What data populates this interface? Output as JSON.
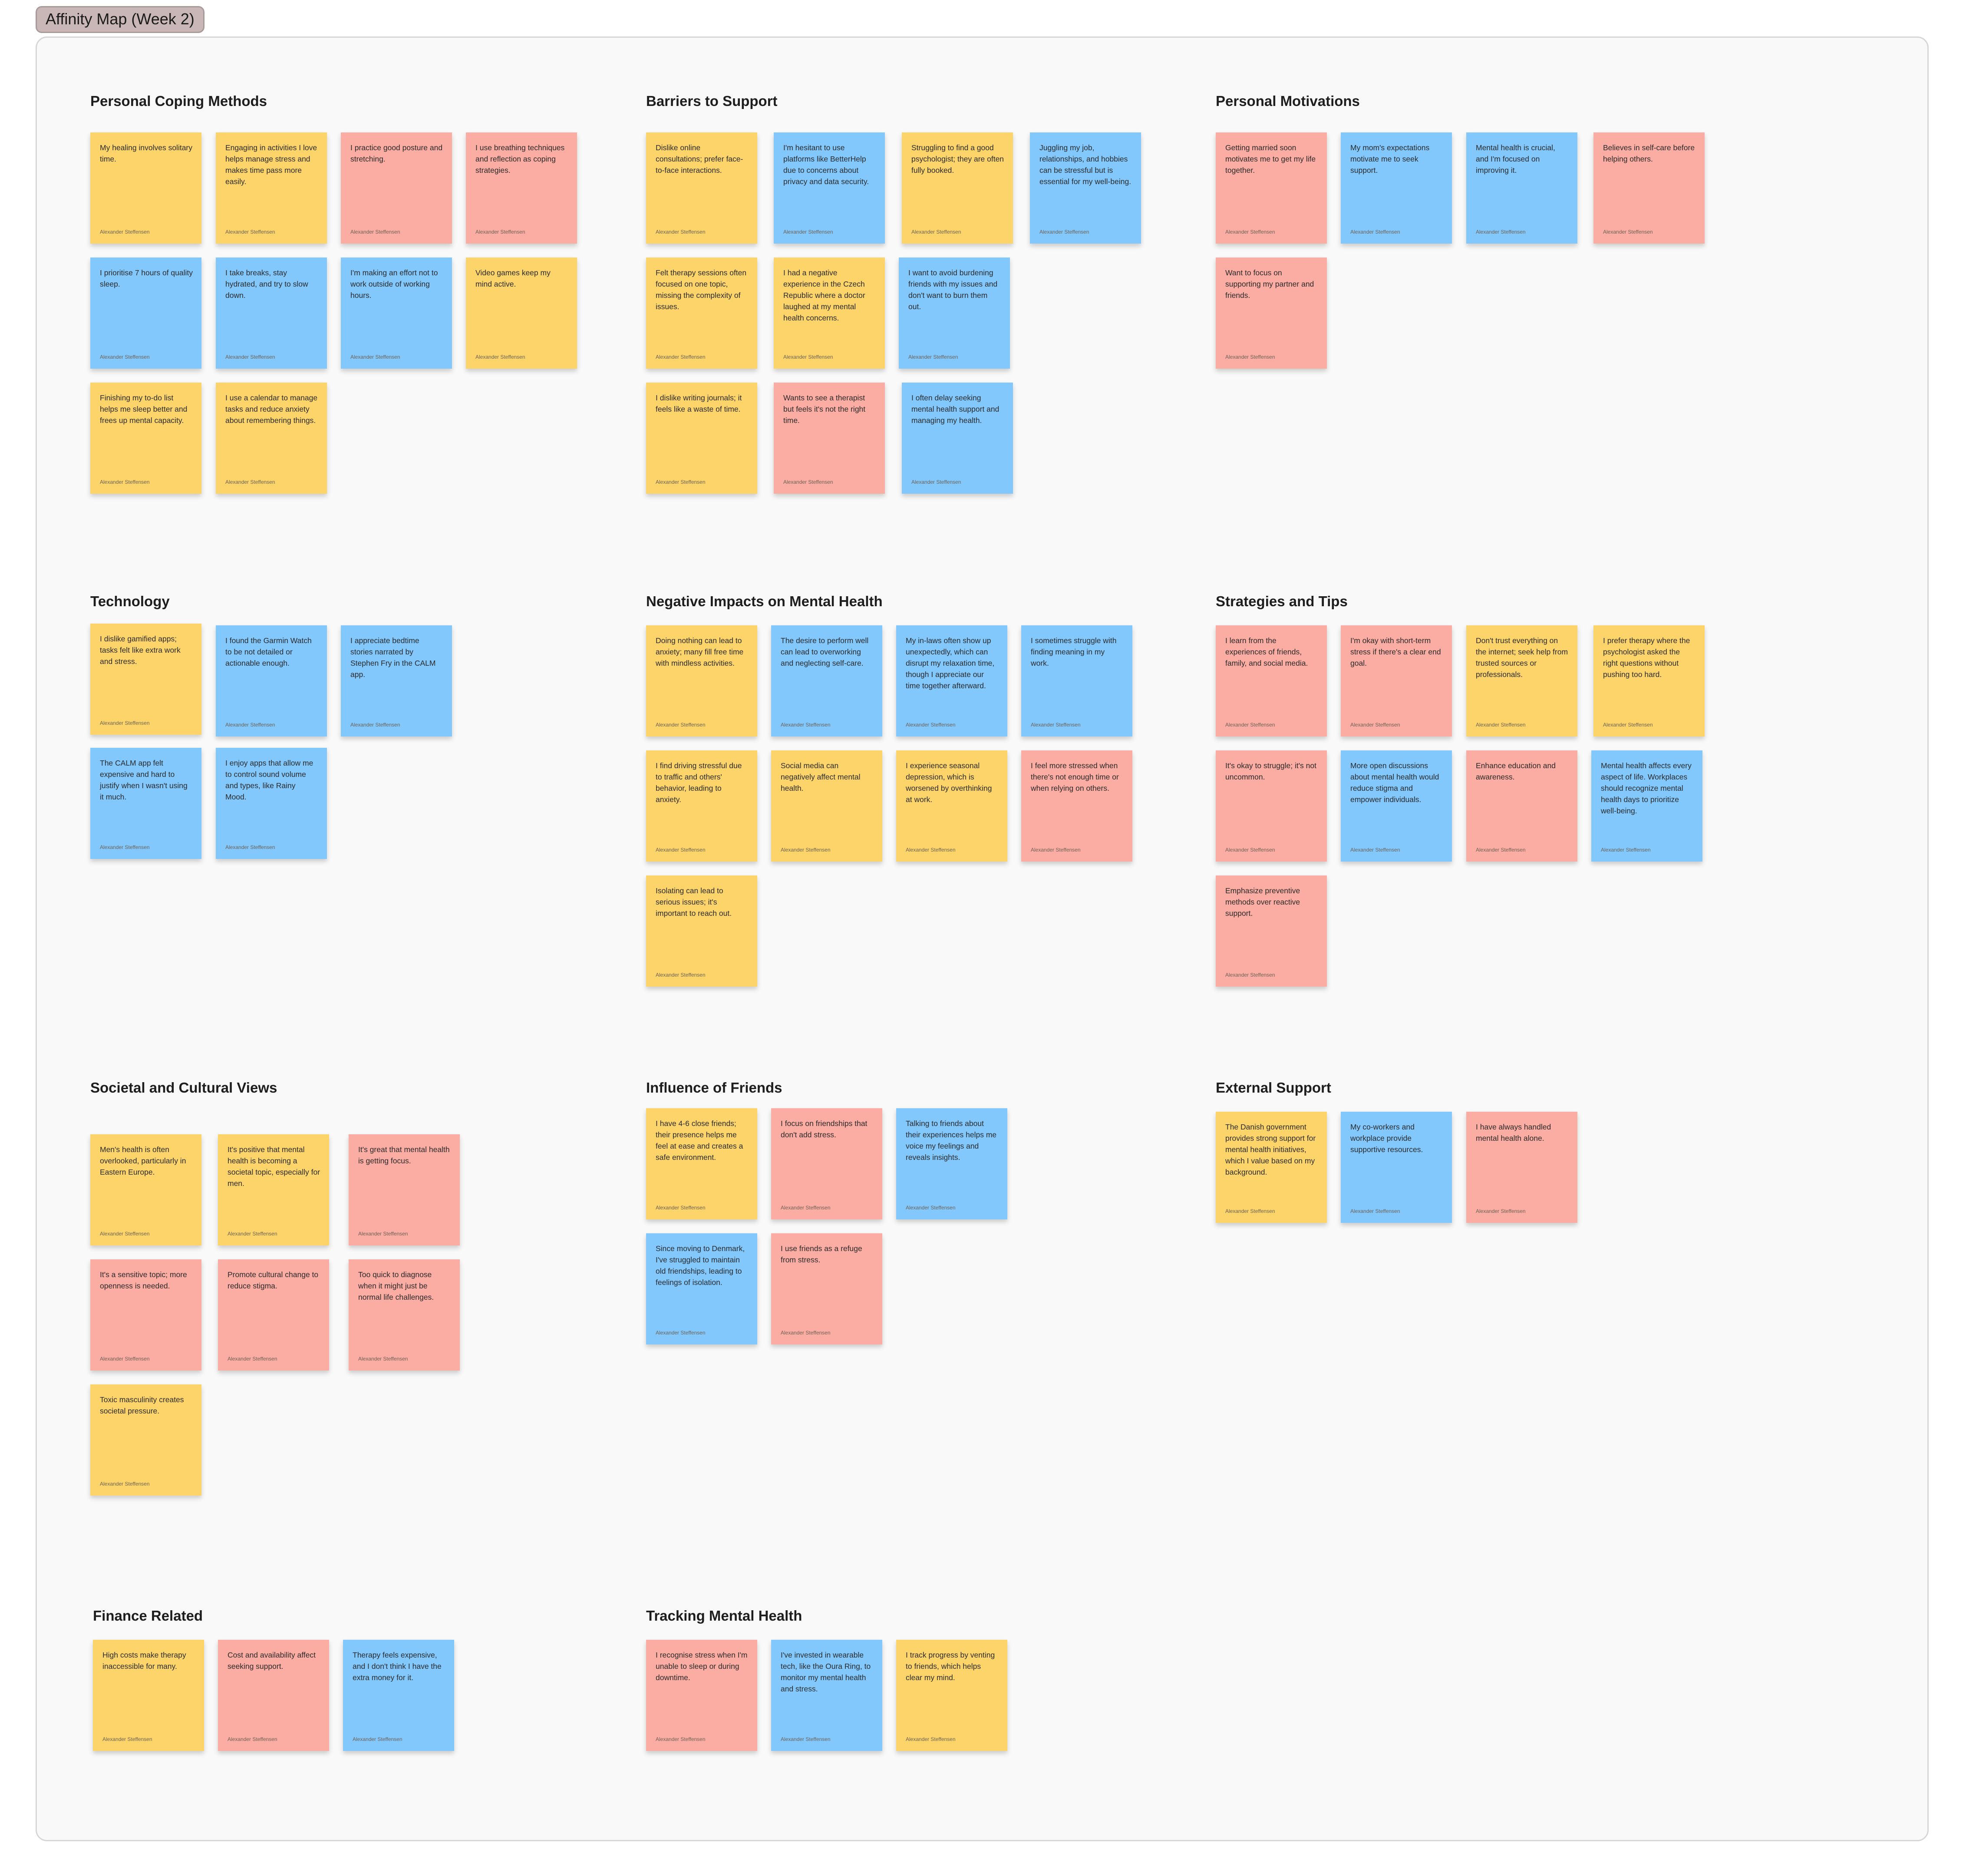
{
  "board": {
    "title": "Affinity Map (Week 2)",
    "colors": {
      "yellow": "#fcd46a",
      "blue": "#82c8fd",
      "red": "#fbaca3",
      "section_bg": "#f9f9f9"
    }
  },
  "groups": [
    {
      "title": "Personal Coping Methods",
      "notes": [
        {
          "text": "My healing involves solitary time.",
          "author": "Alexander Steffensen",
          "color": "yellow"
        },
        {
          "text": "Engaging in activities I love helps manage stress and makes time pass more easily.",
          "author": "Alexander Steffensen",
          "color": "yellow"
        },
        {
          "text": "I practice good posture and stretching.",
          "author": "Alexander Steffensen",
          "color": "red"
        },
        {
          "text": "I use breathing techniques and reflection as coping strategies.",
          "author": "Alexander Steffensen",
          "color": "red"
        },
        {
          "text": "I prioritise 7 hours of quality sleep.",
          "author": "Alexander Steffensen",
          "color": "blue"
        },
        {
          "text": "I take breaks, stay hydrated, and try to slow down.",
          "author": "Alexander Steffensen",
          "color": "blue"
        },
        {
          "text": "I'm making an effort not to work outside of working hours.",
          "author": "Alexander Steffensen",
          "color": "blue"
        },
        {
          "text": "Video games keep my mind active.",
          "author": "Alexander Steffensen",
          "color": "yellow"
        },
        {
          "text": "Finishing my to-do list helps me sleep better and frees up mental capacity.",
          "author": "Alexander Steffensen",
          "color": "yellow"
        },
        {
          "text": "I use a calendar to manage tasks and reduce anxiety about remembering things.",
          "author": "Alexander Steffensen",
          "color": "yellow"
        }
      ]
    },
    {
      "title": "Barriers to Support",
      "notes": [
        {
          "text": "Dislike online consultations; prefer face-to-face interactions.",
          "author": "Alexander Steffensen",
          "color": "yellow"
        },
        {
          "text": "I'm hesitant to use platforms like BetterHelp due to concerns about privacy and data security.",
          "author": "Alexander Steffensen",
          "color": "blue"
        },
        {
          "text": "Struggling to find a good psychologist; they are often fully booked.",
          "author": "Alexander Steffensen",
          "color": "yellow"
        },
        {
          "text": "Juggling my job, relationships, and hobbies can be stressful but is essential for my well-being.",
          "author": "Alexander Steffensen",
          "color": "blue"
        },
        {
          "text": "Felt therapy sessions often focused on one topic, missing the complexity of issues.",
          "author": "Alexander Steffensen",
          "color": "yellow"
        },
        {
          "text": "I had a negative experience in the Czech Republic where a doctor laughed at my mental health concerns.",
          "author": "Alexander Steffensen",
          "color": "yellow"
        },
        {
          "text": "I want to avoid burdening friends with my issues and don't want to burn them out.",
          "author": "Alexander Steffensen",
          "color": "blue"
        },
        {
          "text": "I dislike writing journals; it feels like a waste of time.",
          "author": "Alexander Steffensen",
          "color": "yellow"
        },
        {
          "text": "Wants to see a therapist but feels it's not the right time.",
          "author": "Alexander Steffensen",
          "color": "red"
        },
        {
          "text": "I often delay seeking mental health support and managing my health.",
          "author": "Alexander Steffensen",
          "color": "blue"
        }
      ]
    },
    {
      "title": "Personal Motivations",
      "notes": [
        {
          "text": "Getting married soon motivates me to get my life together.",
          "author": "Alexander Steffensen",
          "color": "red"
        },
        {
          "text": "My mom's expectations motivate me to seek support.",
          "author": "Alexander Steffensen",
          "color": "blue"
        },
        {
          "text": "Mental health is crucial, and I'm focused on improving it.",
          "author": "Alexander Steffensen",
          "color": "blue"
        },
        {
          "text": "Believes in self-care before helping others.",
          "author": "Alexander Steffensen",
          "color": "red"
        },
        {
          "text": "Want to focus on supporting my partner and friends.",
          "author": "Alexander Steffensen",
          "color": "red"
        }
      ]
    },
    {
      "title": "Technology",
      "notes": [
        {
          "text": "I dislike gamified apps; tasks felt like extra work and stress.",
          "author": "Alexander Steffensen",
          "color": "yellow"
        },
        {
          "text": "I found the Garmin Watch to be not detailed or actionable enough.",
          "author": "Alexander Steffensen",
          "color": "blue"
        },
        {
          "text": "I appreciate bedtime stories narrated by Stephen Fry in the CALM app.",
          "author": "Alexander Steffensen",
          "color": "blue"
        },
        {
          "text": "The CALM app felt expensive and hard to justify when I wasn't using it much.",
          "author": "Alexander Steffensen",
          "color": "blue"
        },
        {
          "text": "I enjoy apps that allow me to control sound volume and types, like Rainy Mood.",
          "author": "Alexander Steffensen",
          "color": "blue"
        }
      ]
    },
    {
      "title": "Negative Impacts on Mental Health",
      "notes": [
        {
          "text": "Doing nothing can lead to anxiety; many fill free time with mindless activities.",
          "author": "Alexander Steffensen",
          "color": "yellow"
        },
        {
          "text": "The desire to perform well can lead to overworking and neglecting self-care.",
          "author": "Alexander Steffensen",
          "color": "blue"
        },
        {
          "text": "My in-laws often show up unexpectedly, which can disrupt my relaxation time, though I appreciate our time together afterward.",
          "author": "Alexander Steffensen",
          "color": "blue"
        },
        {
          "text": "I sometimes struggle with finding meaning in my work.",
          "author": "Alexander Steffensen",
          "color": "blue"
        },
        {
          "text": "I find driving stressful due to traffic and others' behavior, leading to anxiety.",
          "author": "Alexander Steffensen",
          "color": "yellow"
        },
        {
          "text": "Social media can negatively affect mental health.",
          "author": "Alexander Steffensen",
          "color": "yellow"
        },
        {
          "text": "I experience seasonal depression, which is worsened by overthinking at work.",
          "author": "Alexander Steffensen",
          "color": "yellow"
        },
        {
          "text": "I feel more stressed when there's not enough time or when relying on others.",
          "author": "Alexander Steffensen",
          "color": "red"
        },
        {
          "text": "Isolating can lead to serious issues; it's important to reach out.",
          "author": "Alexander Steffensen",
          "color": "yellow"
        }
      ]
    },
    {
      "title": "Strategies and Tips",
      "notes": [
        {
          "text": "I learn from the experiences of friends, family, and social media.",
          "author": "Alexander Steffensen",
          "color": "red"
        },
        {
          "text": "I'm okay with short-term stress if there's a clear end goal.",
          "author": "Alexander Steffensen",
          "color": "red"
        },
        {
          "text": "Don't trust everything on the internet; seek help from trusted sources or professionals.",
          "author": "Alexander Steffensen",
          "color": "yellow"
        },
        {
          "text": "I prefer therapy where the psychologist asked the right questions without pushing too hard.",
          "author": "Alexander Steffensen",
          "color": "yellow"
        },
        {
          "text": "It's okay to struggle; it's not uncommon.",
          "author": "Alexander Steffensen",
          "color": "red"
        },
        {
          "text": "More open discussions about mental health would reduce stigma and empower individuals.",
          "author": "Alexander Steffensen",
          "color": "blue"
        },
        {
          "text": "Enhance education and awareness.",
          "author": "Alexander Steffensen",
          "color": "red"
        },
        {
          "text": "Mental health affects every aspect of life. Workplaces should recognize mental health days to prioritize well-being.",
          "author": "Alexander Steffensen",
          "color": "blue"
        },
        {
          "text": "Emphasize preventive methods over reactive support.",
          "author": "Alexander Steffensen",
          "color": "red"
        }
      ]
    },
    {
      "title": "Societal and Cultural Views",
      "notes": [
        {
          "text": "Men's health is often overlooked, particularly in Eastern Europe.",
          "author": "Alexander Steffensen",
          "color": "yellow"
        },
        {
          "text": "It's positive that mental health is becoming a societal topic, especially for men.",
          "author": "Alexander Steffensen",
          "color": "yellow"
        },
        {
          "text": "It's great that mental health is getting focus.",
          "author": "Alexander Steffensen",
          "color": "red"
        },
        {
          "text": "It's a sensitive topic; more openness is needed.",
          "author": "Alexander Steffensen",
          "color": "red"
        },
        {
          "text": "Promote cultural change to reduce stigma.",
          "author": "Alexander Steffensen",
          "color": "red"
        },
        {
          "text": "Too quick to diagnose when it might just be normal life challenges.",
          "author": "Alexander Steffensen",
          "color": "red"
        },
        {
          "text": "Toxic masculinity creates societal pressure.",
          "author": "Alexander Steffensen",
          "color": "yellow"
        }
      ]
    },
    {
      "title": "Influence of Friends",
      "notes": [
        {
          "text": "I have 4-6 close friends; their presence helps me feel at ease and creates a safe environment.",
          "author": "Alexander Steffensen",
          "color": "yellow"
        },
        {
          "text": "I focus on friendships that don't add stress.",
          "author": "Alexander Steffensen",
          "color": "red"
        },
        {
          "text": "Talking to friends about their experiences helps me voice my feelings and reveals insights.",
          "author": "Alexander Steffensen",
          "color": "blue"
        },
        {
          "text": "Since moving to Denmark, I've struggled to maintain old friendships, leading to feelings of isolation.",
          "author": "Alexander Steffensen",
          "color": "blue"
        },
        {
          "text": "I use friends as a refuge from stress.",
          "author": "Alexander Steffensen",
          "color": "red"
        }
      ]
    },
    {
      "title": "External Support",
      "notes": [
        {
          "text": "The Danish government provides strong support for mental health initiatives, which I value based on my background.",
          "author": "Alexander Steffensen",
          "color": "yellow"
        },
        {
          "text": "My co-workers and workplace provide supportive resources.",
          "author": "Alexander Steffensen",
          "color": "blue"
        },
        {
          "text": "I have always handled mental health alone.",
          "author": "Alexander Steffensen",
          "color": "red"
        }
      ]
    },
    {
      "title": "Finance Related",
      "notes": [
        {
          "text": "High costs make therapy inaccessible for many.",
          "author": "Alexander Steffensen",
          "color": "yellow"
        },
        {
          "text": "Cost and availability affect seeking support.",
          "author": "Alexander Steffensen",
          "color": "red"
        },
        {
          "text": "Therapy feels expensive, and I don't think I have the extra money for it.",
          "author": "Alexander Steffensen",
          "color": "blue"
        }
      ]
    },
    {
      "title": "Tracking Mental Health",
      "notes": [
        {
          "text": "I recognise stress when I'm unable to sleep or during downtime.",
          "author": "Alexander Steffensen",
          "color": "red"
        },
        {
          "text": "I've invested in wearable tech, like the Oura Ring, to monitor my mental health and stress.",
          "author": "Alexander Steffensen",
          "color": "blue"
        },
        {
          "text": "I track progress by venting to friends, which helps clear my mind.",
          "author": "Alexander Steffensen",
          "color": "yellow"
        }
      ]
    }
  ]
}
